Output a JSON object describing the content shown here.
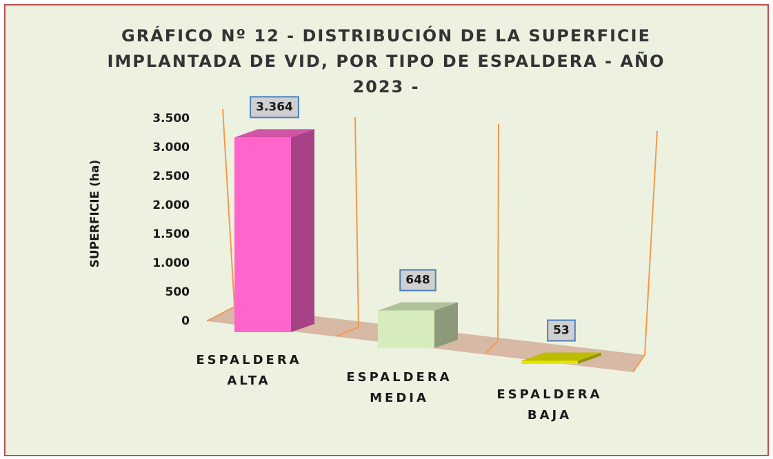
{
  "chart_data": {
    "type": "bar3d",
    "title": "GRÁFICO Nº 12 - DISTRIBUCIÓN DE LA SUPERFICIE IMPLANTADA DE VID, POR TIPO DE ESPALDERA - AÑO 2023 -",
    "y_label": "SUPERFICIE (ha)",
    "categories": [
      "ESPALDERA ALTA",
      "ESPALDERA MEDIA",
      "ESPALDERA BAJA"
    ],
    "values": [
      3364,
      648,
      53
    ],
    "value_labels": [
      "3.364",
      "648",
      "53"
    ],
    "colors": [
      "#ff66cc",
      "#d7ecbc",
      "#e6e600"
    ],
    "ylim": [
      0,
      3500
    ],
    "yticks": [
      0,
      500,
      {
        "value": 1000,
        "label": "1.000"
      },
      {
        "value": 1500,
        "label": "1.500"
      },
      {
        "value": 2000,
        "label": "2.000"
      },
      {
        "value": 2500,
        "label": "2.500"
      },
      {
        "value": 3000,
        "label": "3.000"
      },
      {
        "value": 3500,
        "label": "3.500"
      }
    ]
  }
}
